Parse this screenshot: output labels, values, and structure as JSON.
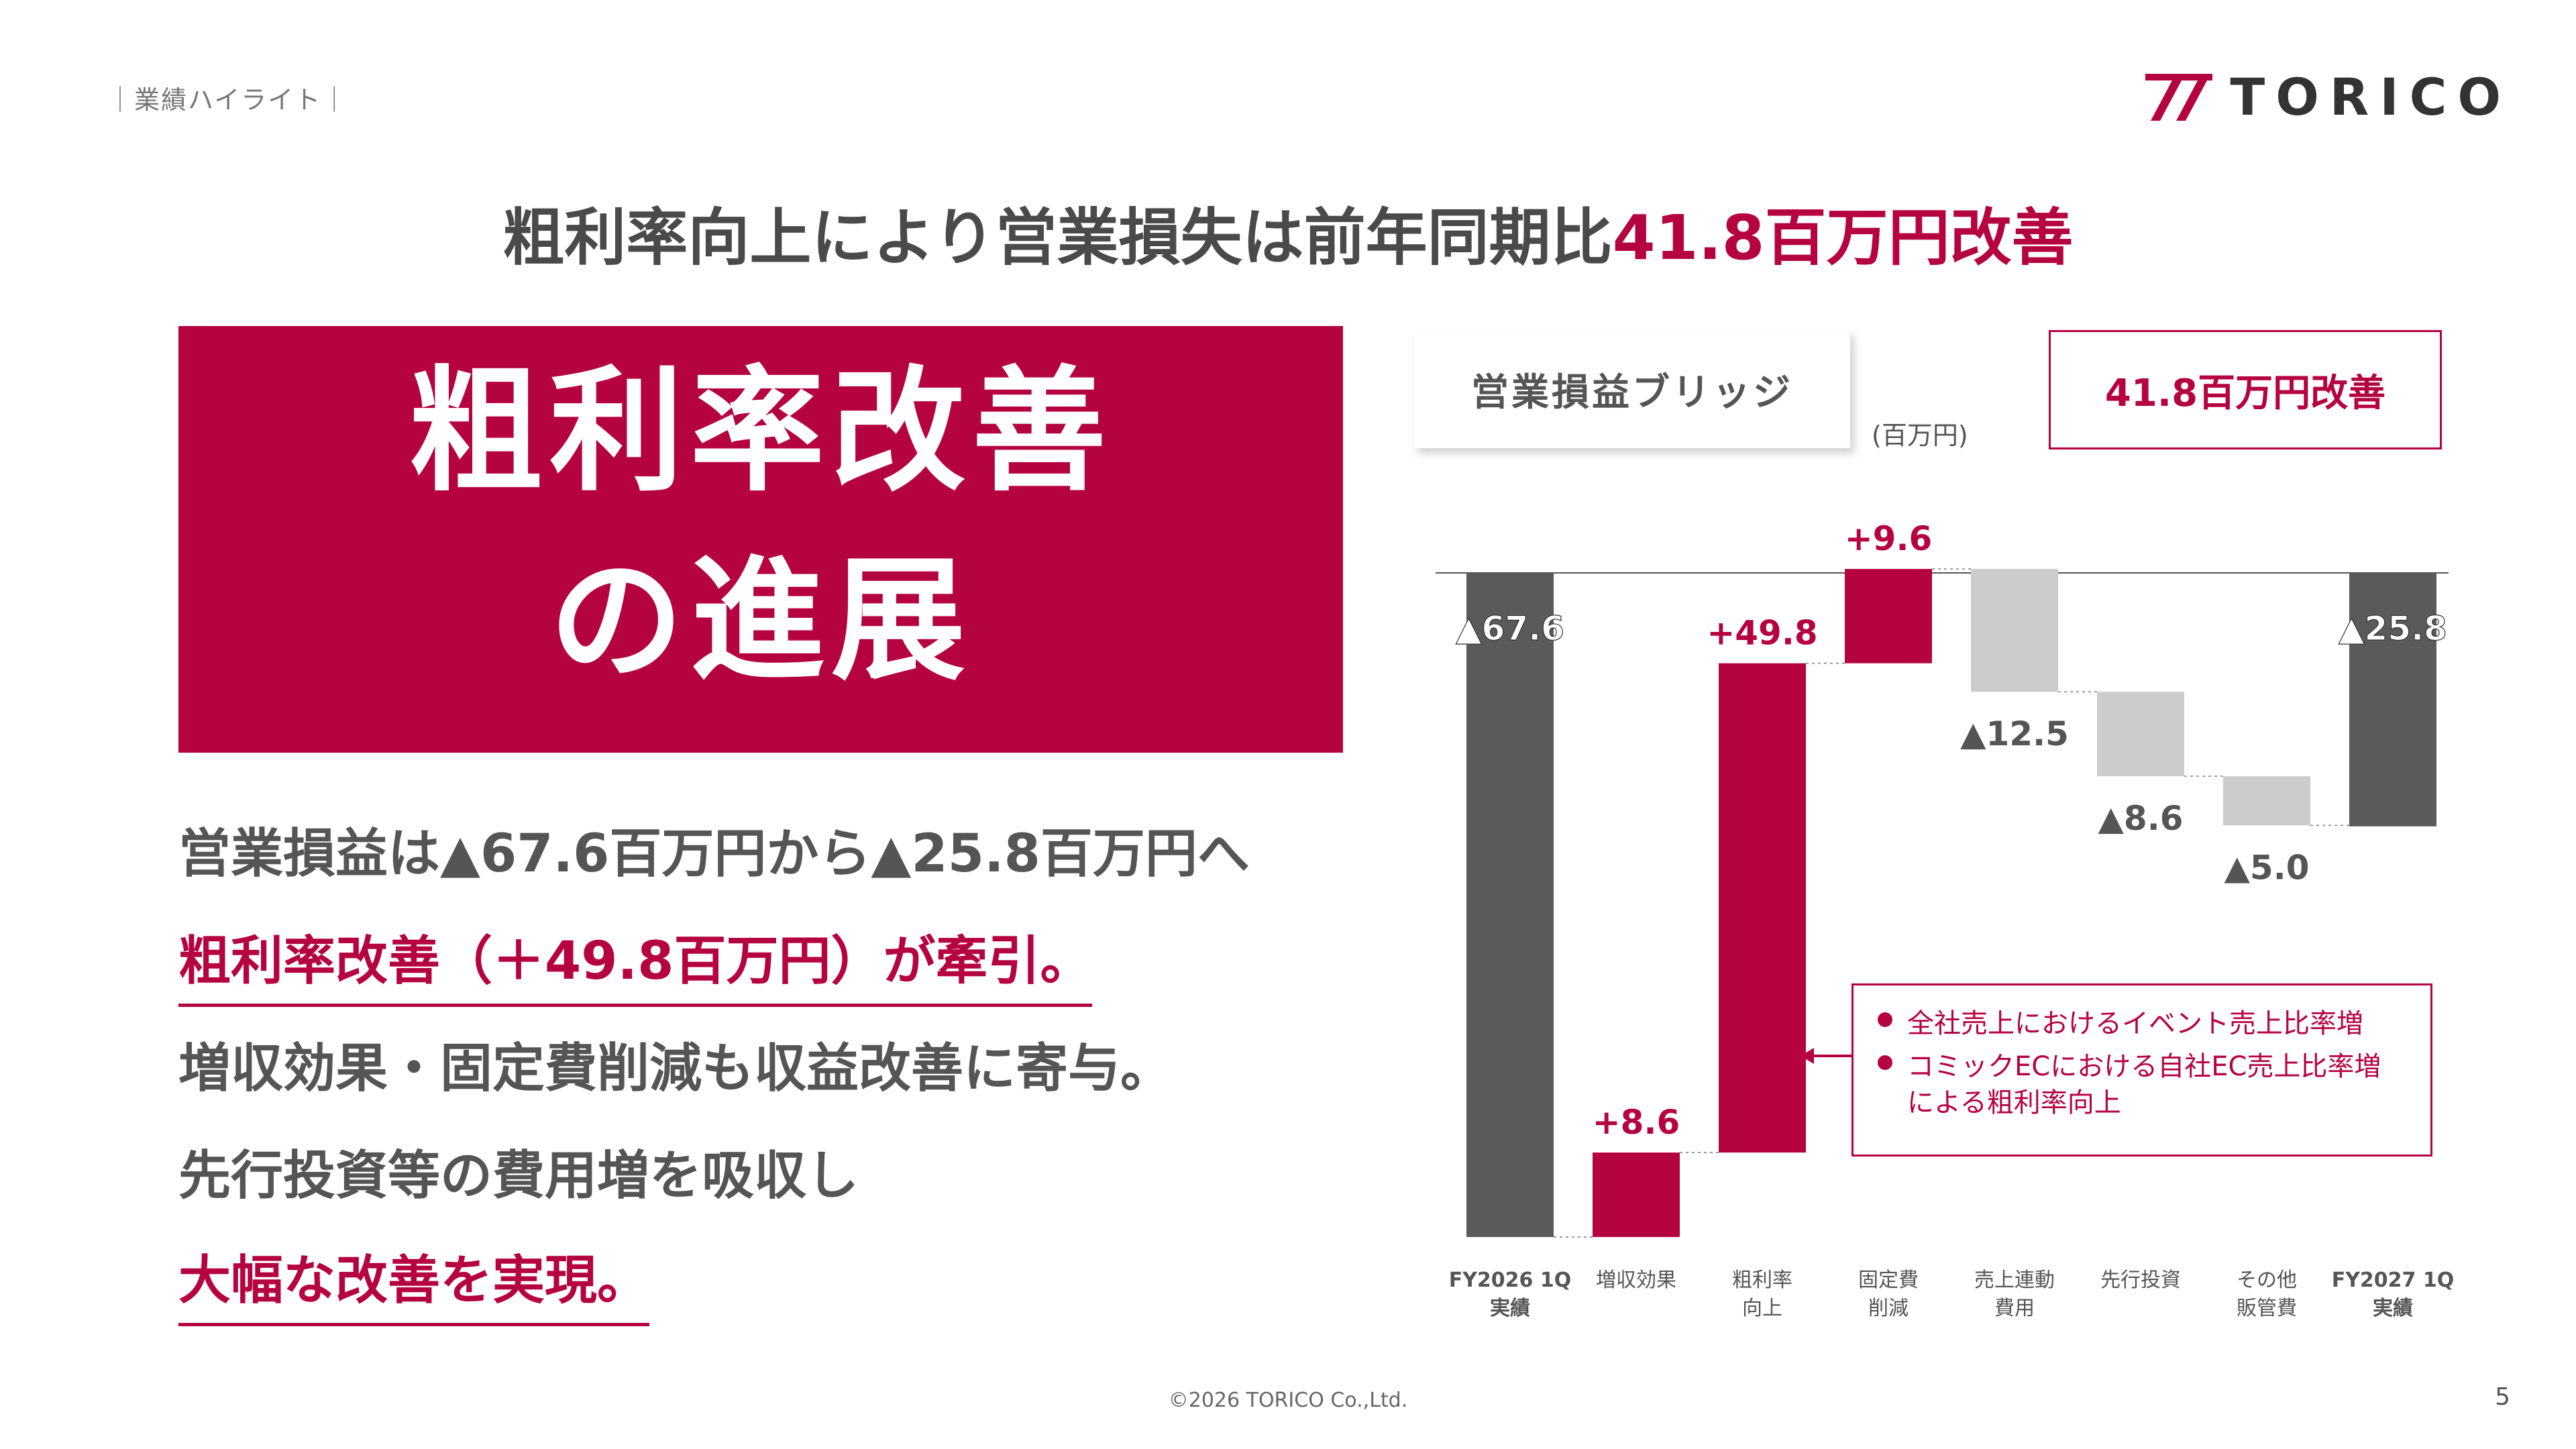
{
  "header": {
    "section": "｜業績ハイライト｜",
    "logo_text": "TORICO"
  },
  "headline": {
    "prefix": "粗利率向上により営業損失は前年同期比",
    "highlight": "41.8百万円改善"
  },
  "hero": {
    "line1": "粗利率改善",
    "line2": "の進展"
  },
  "body": {
    "line1": "営業損益は▲67.6百万円から▲25.8百万円へ",
    "line2": "粗利率改善（＋49.8百万円）が牽引。",
    "line3": "増収効果・固定費削減も収益改善に寄与。",
    "line4": "先行投資等の費用増を吸収し",
    "line5": "大幅な改善を実現。"
  },
  "bridge": {
    "label": "営業損益ブリッジ",
    "unit": "(百万円)",
    "improvement": "41.8百万円改善",
    "callout": [
      "全社売上におけるイベント売上比率増",
      "コミックECにおける自社EC売上比率増",
      "による粗利率向上"
    ]
  },
  "colors": {
    "accent": "#b5033f",
    "dark_bar": "#5a5a5a",
    "light_bar": "#cccccc"
  },
  "chart_data": {
    "type": "bar",
    "subtype": "waterfall",
    "title": "営業損益ブリッジ",
    "unit": "(百万円)",
    "categories": [
      "FY2026 1Q\n実績",
      "増収効果",
      "粗利率\n向上",
      "固定費\n削減",
      "売上連動\n費用",
      "先行投資",
      "その他\n販管費",
      "FY2027 1Q\n実績"
    ],
    "values": [
      -67.6,
      8.6,
      49.8,
      9.6,
      -12.5,
      -8.6,
      -5.0,
      -25.8
    ],
    "kinds": [
      "total",
      "increase",
      "increase",
      "increase",
      "decrease",
      "decrease",
      "decrease",
      "total"
    ],
    "data_labels": [
      "▲67.6",
      "+8.6",
      "+49.8",
      "+9.6",
      "▲12.5",
      "▲8.6",
      "▲5.0",
      "▲25.8"
    ]
  },
  "footer": {
    "copyright": "©2026 TORICO Co.,Ltd.",
    "page": "5"
  }
}
